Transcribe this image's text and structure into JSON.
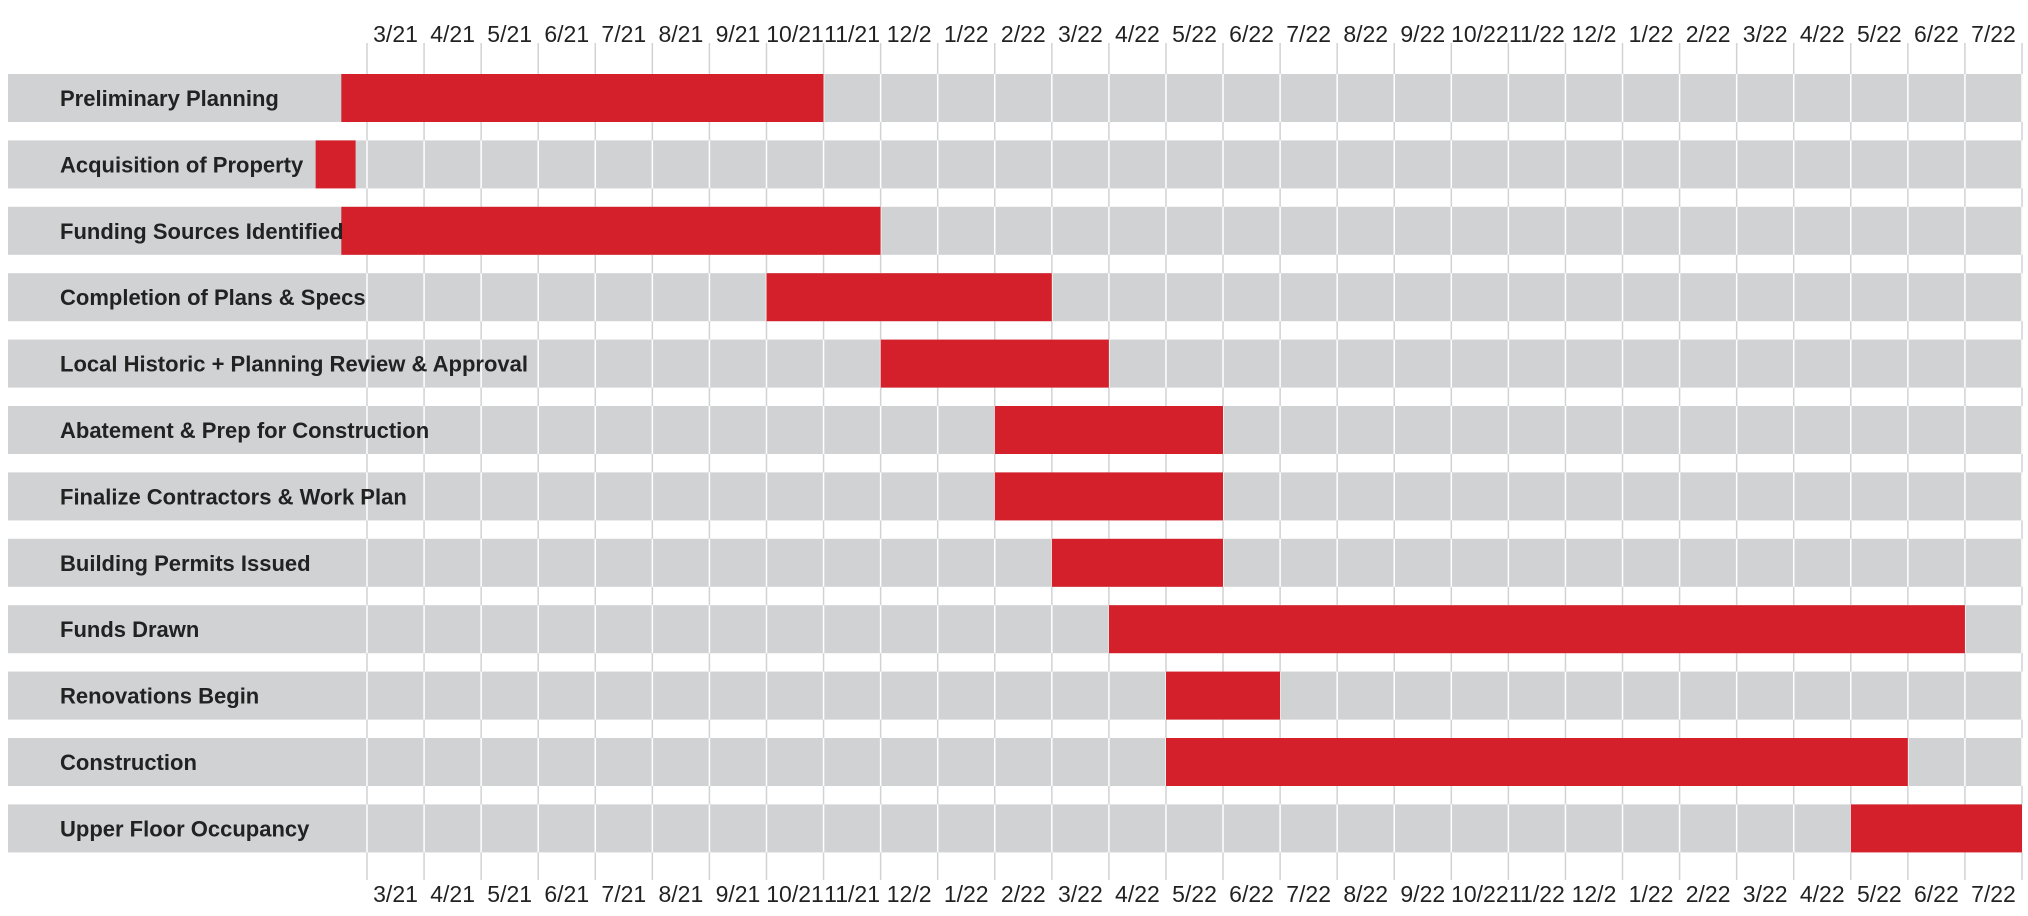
{
  "chart_data": {
    "type": "gantt",
    "title": "",
    "xlabel": "",
    "ylabel": "",
    "grid": true,
    "colors": {
      "bar": "#D3202A",
      "track": "#D1D2D4",
      "grid": "#D1D2D4"
    },
    "months": [
      "3/21",
      "4/21",
      "5/21",
      "6/21",
      "7/21",
      "8/21",
      "9/21",
      "10/21",
      "11/21",
      "12/2",
      "1/22",
      "2/22",
      "3/22",
      "4/22",
      "5/22",
      "6/22",
      "7/22",
      "8/22",
      "9/22",
      "10/22",
      "11/22",
      "12/2",
      "1/22",
      "2/22",
      "3/22",
      "4/22",
      "5/22",
      "6/22",
      "7/22"
    ],
    "tasks": [
      {
        "name": "Preliminary Planning",
        "start": -0.45,
        "end": 8.0
      },
      {
        "name": "Acquisition of Property",
        "start": -0.9,
        "end": -0.2
      },
      {
        "name": "Funding Sources Identified",
        "start": -0.45,
        "end": 9.0
      },
      {
        "name": "Completion of Plans & Specs",
        "start": 7.0,
        "end": 12.0
      },
      {
        "name": "Local Historic + Planning Review & Approval",
        "start": 9.0,
        "end": 13.0
      },
      {
        "name": "Abatement & Prep for Construction",
        "start": 11.0,
        "end": 15.0
      },
      {
        "name": "Finalize Contractors & Work Plan",
        "start": 11.0,
        "end": 15.0
      },
      {
        "name": "Building Permits Issued",
        "start": 12.0,
        "end": 15.0
      },
      {
        "name": "Funds Drawn",
        "start": 13.0,
        "end": 28.0
      },
      {
        "name": "Renovations Begin",
        "start": 14.0,
        "end": 16.0
      },
      {
        "name": "Construction",
        "start": 14.0,
        "end": 27.0
      },
      {
        "name": "Upper Floor Occupancy",
        "start": 26.0,
        "end": 29.0
      }
    ]
  }
}
